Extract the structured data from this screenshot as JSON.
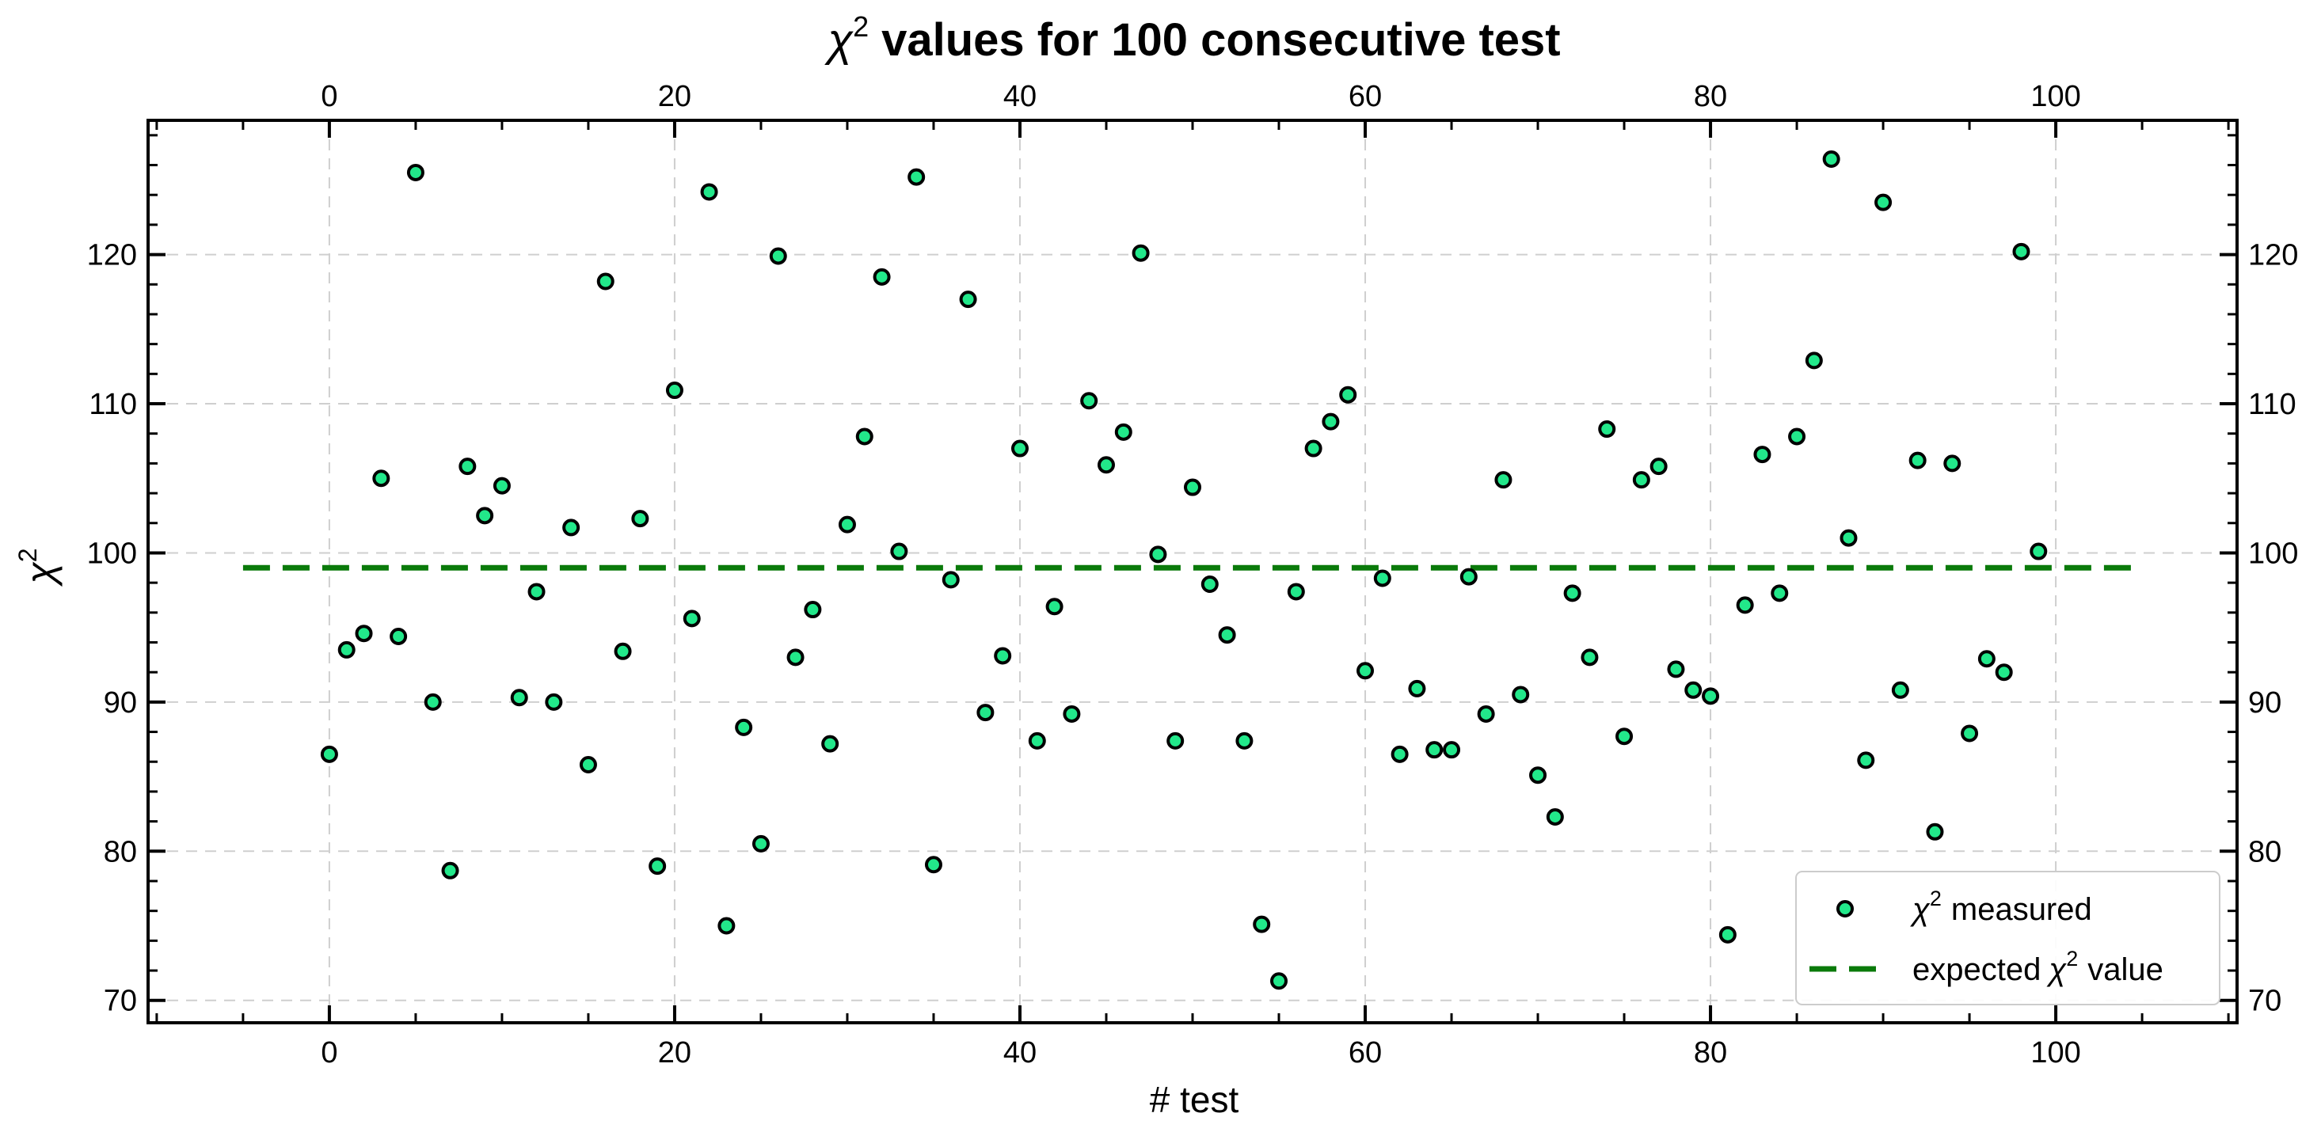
{
  "chart_data": {
    "type": "scatter",
    "title": "values for 100 consecutive test",
    "title_symbol": "χ",
    "title_superscript": "2",
    "xlabel": "# test",
    "ylabel_symbol": "χ",
    "ylabel_superscript": "2",
    "xlim": [
      -10.5,
      110.5
    ],
    "ylim": [
      68.5,
      129
    ],
    "x_ticks": [
      0,
      20,
      40,
      60,
      80,
      100
    ],
    "y_ticks": [
      70,
      80,
      90,
      100,
      110,
      120
    ],
    "grid": true,
    "legend_position": "lower-right",
    "marker_color": "#22e88a",
    "line_color": "#0a7a0a",
    "series": [
      {
        "name": "measured",
        "symbol": "χ",
        "superscript": "2",
        "kind": "scatter",
        "x": [
          0,
          1,
          2,
          3,
          4,
          5,
          6,
          7,
          8,
          9,
          10,
          11,
          12,
          13,
          14,
          15,
          16,
          17,
          18,
          19,
          20,
          21,
          22,
          23,
          24,
          25,
          26,
          27,
          28,
          29,
          30,
          31,
          32,
          33,
          34,
          35,
          36,
          37,
          38,
          39,
          40,
          41,
          42,
          43,
          44,
          45,
          46,
          47,
          48,
          49,
          50,
          51,
          52,
          53,
          54,
          55,
          56,
          57,
          58,
          59,
          60,
          61,
          62,
          63,
          64,
          65,
          66,
          67,
          68,
          69,
          70,
          71,
          72,
          73,
          74,
          75,
          76,
          77,
          78,
          79,
          80,
          81,
          82,
          83,
          84,
          85,
          86,
          87,
          88,
          89,
          90,
          91,
          92,
          93,
          94,
          95,
          96,
          97,
          98,
          99
        ],
        "y": [
          86.5,
          93.5,
          94.6,
          105,
          94.4,
          125.5,
          90,
          78.7,
          105.8,
          102.5,
          104.5,
          90.3,
          97.4,
          90,
          101.7,
          85.8,
          118.2,
          93.4,
          102.3,
          79,
          110.9,
          95.6,
          124.2,
          75,
          88.3,
          80.5,
          119.9,
          93,
          96.2,
          87.2,
          101.9,
          107.8,
          118.5,
          100.1,
          125.2,
          79.1,
          98.2,
          117,
          89.3,
          93.1,
          107,
          87.4,
          96.4,
          89.2,
          110.2,
          105.9,
          108.1,
          120.1,
          99.9,
          87.4,
          104.4,
          97.9,
          94.5,
          87.4,
          75.1,
          71.3,
          97.4,
          107,
          108.8,
          110.6,
          92.1,
          98.3,
          86.5,
          90.9,
          86.8,
          86.8,
          98.4,
          89.2,
          104.9,
          90.5,
          85.1,
          82.3,
          97.3,
          93,
          108.3,
          87.7,
          104.9,
          105.8,
          92.2,
          90.8,
          90.4,
          74.4,
          96.5,
          106.6,
          97.3,
          107.8,
          112.9,
          126.4,
          101,
          86.1,
          123.5,
          90.8,
          106.2,
          81.3,
          106,
          87.9,
          92.9,
          92,
          120.2,
          100.1
        ]
      },
      {
        "name": "expected value",
        "name_prefix": "expected",
        "symbol": "χ",
        "superscript": "2",
        "name_suffix": "value",
        "kind": "line",
        "x": [
          -5,
          105
        ],
        "y": [
          99,
          99
        ]
      }
    ]
  }
}
